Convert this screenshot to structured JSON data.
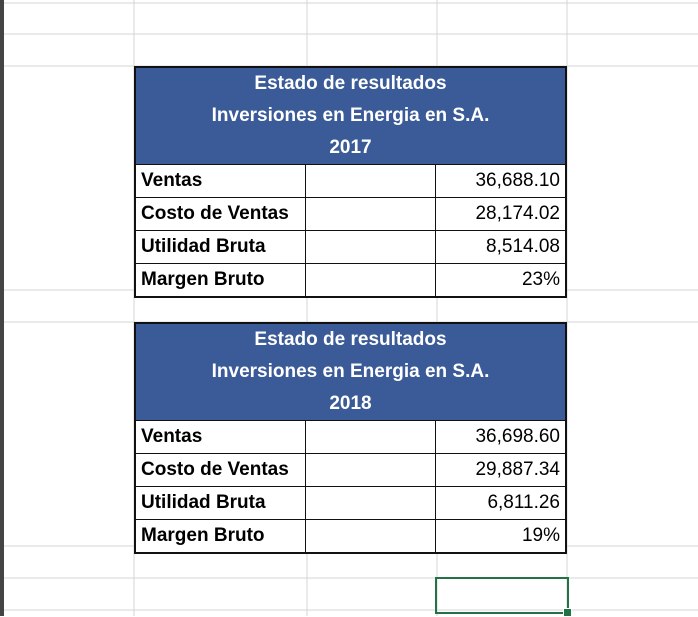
{
  "report_2017": {
    "title": "Estado de resultados",
    "company": "Inversiones en Energia en S.A.",
    "year": "2017",
    "rows": [
      {
        "label": "Ventas",
        "value": "36,688.10"
      },
      {
        "label": "Costo de Ventas",
        "value": "28,174.02"
      },
      {
        "label": "Utilidad Bruta",
        "value": "8,514.08"
      },
      {
        "label": "Margen Bruto",
        "value": "23%"
      }
    ]
  },
  "report_2018": {
    "title": "Estado de resultados",
    "company": "Inversiones en Energia en S.A.",
    "year": "2018",
    "rows": [
      {
        "label": "Ventas",
        "value": "36,698.60"
      },
      {
        "label": "Costo de Ventas",
        "value": "29,887.34"
      },
      {
        "label": "Utilidad Bruta",
        "value": "6,811.26"
      },
      {
        "label": "Margen Bruto",
        "value": "19%"
      }
    ]
  },
  "colors": {
    "header_fill": "#3a5a98",
    "header_text": "#ffffff",
    "selection": "#217346",
    "gridline": "#d4d4d4"
  }
}
